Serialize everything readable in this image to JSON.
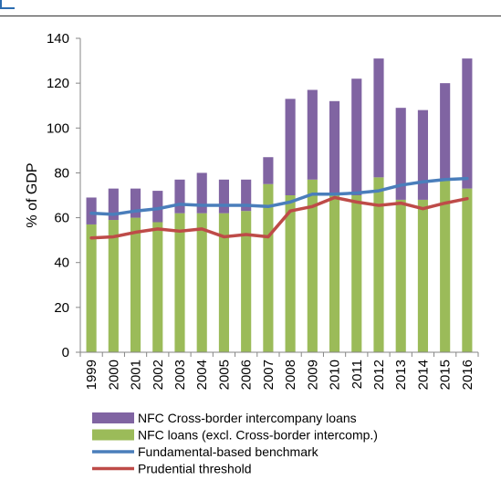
{
  "chart_data": {
    "type": "bar",
    "stacked": true,
    "categories": [
      "1999",
      "2000",
      "2001",
      "2002",
      "2003",
      "2004",
      "2005",
      "2006",
      "2007",
      "2008",
      "2009",
      "2010",
      "2011",
      "2012",
      "2013",
      "2014",
      "2015",
      "2016"
    ],
    "series": [
      {
        "name": "NFC loans (excl. Cross-border intercomp.)",
        "kind": "bar",
        "color": "#9bbb59",
        "values": [
          57,
          59,
          60,
          58,
          62,
          62,
          62,
          63,
          75,
          70,
          77,
          70,
          70,
          78,
          68,
          68,
          77,
          73
        ]
      },
      {
        "name": "NFC Cross-border intercompany loans",
        "kind": "bar",
        "color": "#8064a2",
        "values": [
          12,
          14,
          13,
          14,
          15,
          18,
          15,
          14,
          12,
          43,
          40,
          42,
          52,
          53,
          41,
          40,
          43,
          58
        ]
      },
      {
        "name": "Fundamental-based benchmark",
        "kind": "line",
        "color": "#4a7ebb",
        "values": [
          62,
          61.5,
          63,
          64,
          66,
          65.5,
          65.5,
          65.5,
          65,
          67,
          70.5,
          70.5,
          71,
          72,
          74.5,
          76,
          77,
          77.5
        ]
      },
      {
        "name": "Prudential threshold",
        "kind": "line",
        "color": "#be4b48",
        "values": [
          51,
          51.5,
          53.5,
          55,
          54,
          55,
          51.5,
          52.5,
          51.5,
          63,
          65,
          69,
          67,
          65.5,
          66.5,
          64,
          66.5,
          68.5
        ]
      }
    ],
    "ylabel": "% of GDP",
    "xlabel": "",
    "ylim": [
      0,
      140
    ],
    "yticks": [
      0,
      20,
      40,
      60,
      80,
      100,
      120,
      140
    ],
    "grid": false,
    "legend_position": "bottom",
    "legend_order": [
      1,
      0,
      2,
      3
    ]
  }
}
